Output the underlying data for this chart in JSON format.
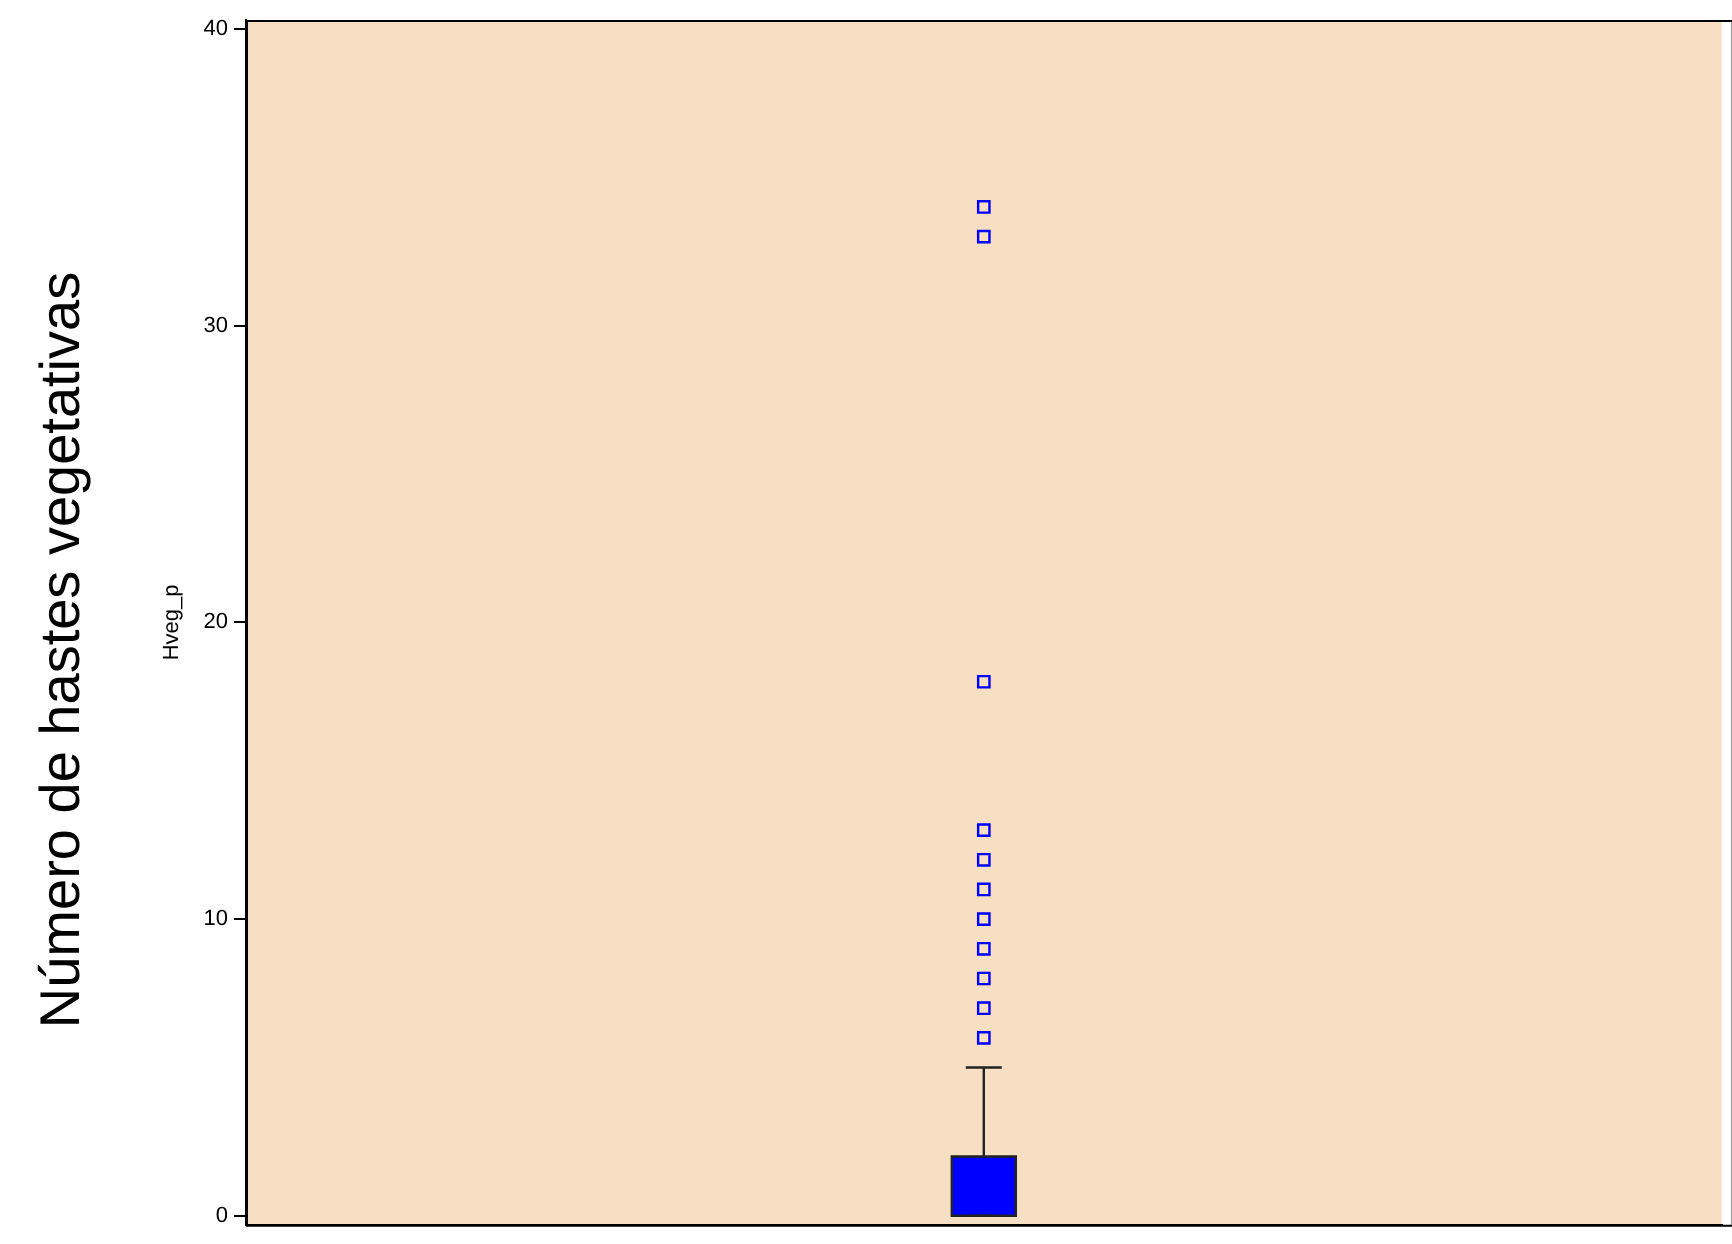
{
  "chart_data": {
    "type": "box",
    "ylabel": "Hveg_p",
    "annotations": [
      "Número de hastes vegetativas"
    ],
    "categories": [
      null
    ],
    "boxes": [
      {
        "low": 0,
        "q1": 0,
        "median": 0,
        "q3": 2,
        "high": 5,
        "outliers": [
          6,
          7,
          8,
          9,
          10,
          11,
          12,
          13,
          18,
          33,
          34
        ]
      }
    ],
    "color": "#0000ff",
    "marker": "square",
    "ylim": [
      -0.3,
      40.3
    ],
    "yticks": [
      0,
      10,
      20,
      30,
      40
    ],
    "grid": false,
    "tick_labels": "y",
    "legend": false
  }
}
